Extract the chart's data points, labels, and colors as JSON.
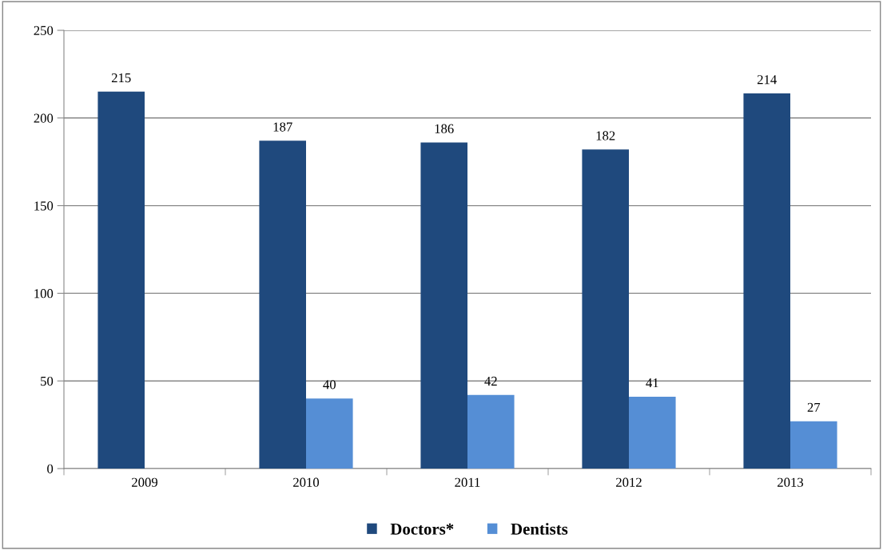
{
  "chart_data": {
    "type": "bar",
    "categories": [
      "2009",
      "2010",
      "2011",
      "2012",
      "2013"
    ],
    "series": [
      {
        "name": "Doctors*",
        "color": "#1f497d",
        "values": [
          215,
          187,
          186,
          182,
          214
        ]
      },
      {
        "name": "Dentists",
        "color": "#558ed5",
        "values": [
          null,
          40,
          42,
          41,
          27
        ]
      }
    ],
    "ylim": [
      0,
      250
    ],
    "yticks": [
      0,
      50,
      100,
      150,
      200,
      250
    ],
    "grid": "y",
    "legend": "bottom",
    "data_labels": true
  }
}
